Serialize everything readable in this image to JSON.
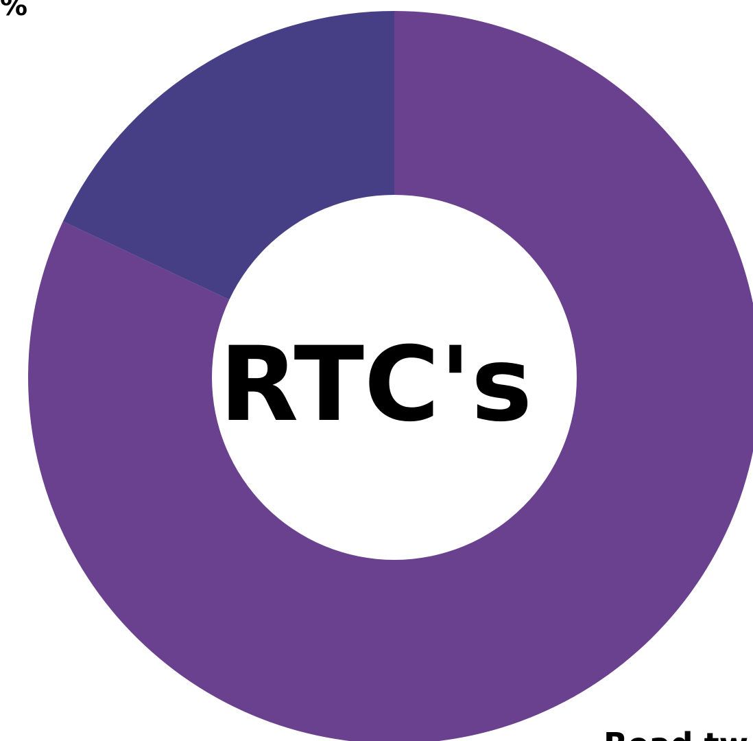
{
  "chart_data": {
    "type": "pie",
    "variant": "donut",
    "center_label": "RTC's",
    "slices": [
      {
        "value": 82,
        "color": "#6a418f"
      },
      {
        "value": 18,
        "color": "#463f85"
      }
    ],
    "visible_text": {
      "top_left_fragment": "%",
      "bottom_right_fragment": "Read tw"
    }
  }
}
